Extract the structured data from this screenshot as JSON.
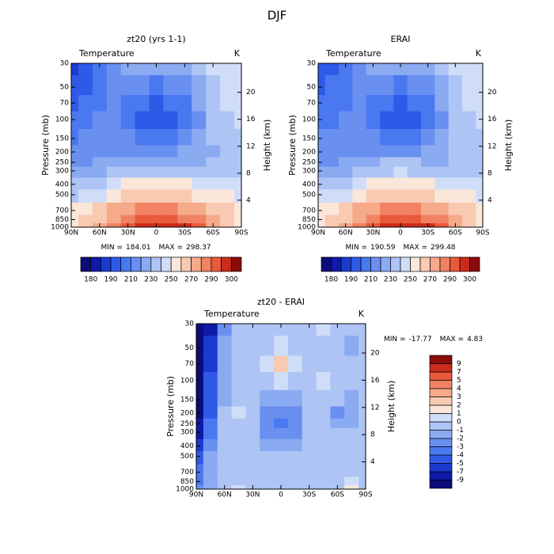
{
  "title": "DJF",
  "chart_data": [
    {
      "type": "contour",
      "title": "zt20 (yrs 1-1)",
      "left_label": "Temperature",
      "right_label": "K",
      "x": [
        90,
        75,
        60,
        45,
        30,
        15,
        0,
        -15,
        -30,
        -45,
        -60,
        -75,
        -90
      ],
      "xlim": [
        90,
        -90
      ],
      "xticks": [
        {
          "value": 90,
          "label": "90N"
        },
        {
          "value": 60,
          "label": "60N"
        },
        {
          "value": 30,
          "label": "30N"
        },
        0,
        {
          "value": -30,
          "label": "30S"
        },
        {
          "value": -60,
          "label": "60S"
        },
        {
          "value": -90,
          "label": "90S"
        }
      ],
      "y": [
        30,
        50,
        70,
        100,
        150,
        200,
        250,
        300,
        400,
        500,
        700,
        850,
        1000
      ],
      "ylim": [
        1000,
        30
      ],
      "yscale": "log",
      "yticks": [
        1000,
        850,
        700,
        500,
        400,
        300,
        250,
        200,
        150,
        100,
        70,
        50,
        30
      ],
      "ylabel": "Pressure (mb)",
      "y2lim": [
        0,
        24.3
      ],
      "y2ticks": [
        4,
        8,
        12,
        16,
        20
      ],
      "y2label": "Height (km)",
      "z": [
        [
          188,
          195,
          205,
          215,
          220,
          222,
          222,
          222,
          225,
          232,
          240,
          245,
          248
        ],
        [
          192,
          198,
          207,
          212,
          212,
          210,
          208,
          210,
          215,
          225,
          235,
          242,
          246
        ],
        [
          198,
          203,
          208,
          210,
          205,
          200,
          198,
          200,
          207,
          220,
          232,
          240,
          244
        ],
        [
          203,
          207,
          212,
          212,
          205,
          196,
          194,
          196,
          205,
          218,
          230,
          238,
          240
        ],
        [
          208,
          210,
          214,
          215,
          210,
          205,
          203,
          205,
          212,
          222,
          230,
          234,
          236
        ],
        [
          212,
          214,
          216,
          217,
          216,
          215,
          214,
          216,
          220,
          225,
          228,
          232,
          233
        ],
        [
          215,
          217,
          220,
          222,
          225,
          227,
          228,
          228,
          226,
          228,
          232,
          232,
          232
        ],
        [
          220,
          222,
          226,
          230,
          235,
          237,
          238,
          237,
          235,
          234,
          235,
          234,
          233
        ],
        [
          230,
          233,
          238,
          244,
          250,
          252,
          253,
          252,
          250,
          247,
          245,
          243,
          240
        ],
        [
          238,
          242,
          248,
          255,
          260,
          263,
          264,
          263,
          260,
          257,
          254,
          250,
          246
        ],
        [
          250,
          255,
          262,
          270,
          276,
          280,
          281,
          280,
          277,
          272,
          266,
          260,
          254
        ],
        [
          255,
          260,
          268,
          278,
          285,
          290,
          291,
          290,
          287,
          282,
          274,
          265,
          258
        ],
        [
          250,
          262,
          275,
          285,
          292,
          297,
          298,
          297,
          295,
          290,
          278,
          265,
          255
        ]
      ],
      "min_label": "MIN =",
      "min": 184.01,
      "max_label": "MAX =",
      "max": 298.37,
      "colorbar": {
        "orientation": "horizontal",
        "levels": [
          180,
          {
            "value": 185,
            "label": null
          },
          190,
          {
            "value": 200,
            "label": null
          },
          210,
          {
            "value": 220,
            "label": null
          },
          230,
          {
            "value": 240,
            "label": null
          },
          250,
          {
            "value": 260,
            "label": null
          },
          270,
          {
            "value": 280,
            "label": null
          },
          290,
          {
            "value": 295,
            "label": null
          },
          300
        ],
        "colors": [
          "#0c0c7a",
          "#0e1aa8",
          "#1a3ad0",
          "#2f5ae8",
          "#4a78f0",
          "#6990f0",
          "#8aaaf2",
          "#adc4f5",
          "#d0ddf8",
          "#fbe6da",
          "#f8cab2",
          "#f5aa8a",
          "#f08262",
          "#e85a3a",
          "#cc2a1a",
          "#8c0c0c"
        ]
      }
    },
    {
      "type": "contour",
      "title": "ERAI",
      "left_label": "Temperature",
      "right_label": "K",
      "x": [
        90,
        75,
        60,
        45,
        30,
        15,
        0,
        -15,
        -30,
        -45,
        -60,
        -75,
        -90
      ],
      "xlim": [
        90,
        -90
      ],
      "xticks": [
        {
          "value": 90,
          "label": "90N"
        },
        {
          "value": 60,
          "label": "60N"
        },
        {
          "value": 30,
          "label": "30N"
        },
        0,
        {
          "value": -30,
          "label": "30S"
        },
        {
          "value": -60,
          "label": "60S"
        },
        {
          "value": -90,
          "label": "90S"
        }
      ],
      "y": [
        30,
        50,
        70,
        100,
        150,
        200,
        250,
        300,
        400,
        500,
        700,
        850,
        1000
      ],
      "ylim": [
        1000,
        30
      ],
      "yscale": "log",
      "yticks": [
        1000,
        850,
        700,
        500,
        400,
        300,
        250,
        200,
        150,
        100,
        70,
        50,
        30
      ],
      "ylabel": "Pressure (mb)",
      "y2lim": [
        0,
        24.3
      ],
      "y2ticks": [
        4,
        8,
        12,
        16,
        20
      ],
      "y2label": "Height (km)",
      "z": [
        [
          193,
          198,
          207,
          216,
          221,
          223,
          223,
          223,
          226,
          233,
          241,
          246,
          249
        ],
        [
          196,
          201,
          208,
          213,
          213,
          211,
          209,
          211,
          216,
          226,
          236,
          243,
          247
        ],
        [
          201,
          205,
          209,
          211,
          205,
          200,
          197,
          200,
          208,
          221,
          233,
          241,
          245
        ],
        [
          205,
          209,
          213,
          213,
          206,
          197,
          194,
          197,
          206,
          219,
          231,
          239,
          241
        ],
        [
          210,
          212,
          215,
          216,
          211,
          206,
          204,
          206,
          213,
          223,
          231,
          235,
          237
        ],
        [
          214,
          216,
          217,
          218,
          217,
          217,
          216,
          218,
          221,
          226,
          230,
          233,
          234
        ],
        [
          217,
          219,
          221,
          223,
          226,
          230,
          231,
          230,
          227,
          229,
          233,
          233,
          233
        ],
        [
          222,
          224,
          227,
          231,
          236,
          239,
          240,
          239,
          236,
          235,
          236,
          235,
          234
        ],
        [
          232,
          235,
          239,
          245,
          251,
          253,
          254,
          253,
          251,
          248,
          246,
          244,
          241
        ],
        [
          240,
          244,
          249,
          256,
          261,
          264,
          265,
          264,
          261,
          258,
          255,
          251,
          247
        ],
        [
          252,
          256,
          263,
          271,
          277,
          281,
          282,
          281,
          278,
          273,
          267,
          261,
          255
        ],
        [
          257,
          262,
          269,
          279,
          286,
          291,
          292,
          291,
          288,
          283,
          275,
          266,
          259
        ],
        [
          252,
          264,
          276,
          286,
          293,
          298,
          299,
          298,
          296,
          291,
          279,
          266,
          256
        ]
      ],
      "min_label": "MIN =",
      "min": 190.59,
      "max_label": "MAX =",
      "max": 299.48,
      "colorbar": {
        "orientation": "horizontal",
        "levels": [
          180,
          {
            "value": 185,
            "label": null
          },
          190,
          {
            "value": 200,
            "label": null
          },
          210,
          {
            "value": 220,
            "label": null
          },
          230,
          {
            "value": 240,
            "label": null
          },
          250,
          {
            "value": 260,
            "label": null
          },
          270,
          {
            "value": 280,
            "label": null
          },
          290,
          {
            "value": 295,
            "label": null
          },
          300
        ],
        "colors": [
          "#0c0c7a",
          "#0e1aa8",
          "#1a3ad0",
          "#2f5ae8",
          "#4a78f0",
          "#6990f0",
          "#8aaaf2",
          "#adc4f5",
          "#d0ddf8",
          "#fbe6da",
          "#f8cab2",
          "#f5aa8a",
          "#f08262",
          "#e85a3a",
          "#cc2a1a",
          "#8c0c0c"
        ]
      }
    },
    {
      "type": "contour",
      "title": "zt20 - ERAI",
      "left_label": "Temperature",
      "right_label": "K",
      "x": [
        90,
        75,
        60,
        45,
        30,
        15,
        0,
        -15,
        -30,
        -45,
        -60,
        -75,
        -90
      ],
      "xlim": [
        90,
        -90
      ],
      "xticks": [
        {
          "value": 90,
          "label": "90N"
        },
        {
          "value": 60,
          "label": "60N"
        },
        {
          "value": 30,
          "label": "30N"
        },
        0,
        {
          "value": -30,
          "label": "30S"
        },
        {
          "value": -60,
          "label": "60S"
        },
        {
          "value": -90,
          "label": "90S"
        }
      ],
      "y": [
        30,
        50,
        70,
        100,
        150,
        200,
        250,
        300,
        400,
        500,
        700,
        850,
        1000
      ],
      "ylim": [
        1000,
        30
      ],
      "yscale": "log",
      "yticks": [
        1000,
        850,
        700,
        500,
        400,
        300,
        250,
        200,
        150,
        100,
        70,
        50,
        30
      ],
      "ylabel": "Pressure (mb)",
      "y2lim": [
        0,
        24.3
      ],
      "y2ticks": [
        4,
        8,
        12,
        16,
        20
      ],
      "y2label": "Height (km)",
      "z": [
        [
          -15,
          -8,
          -3,
          -1,
          -1,
          -0.5,
          -1,
          -0.5,
          -0.5,
          0.5,
          -0.5,
          -1,
          -1
        ],
        [
          -14,
          -7,
          -2,
          -0.5,
          -1,
          -0.5,
          0.5,
          -0.5,
          -1,
          -1,
          -1,
          -1.5,
          -1
        ],
        [
          -13,
          -6,
          -2,
          -0.5,
          -0.5,
          0.5,
          2.5,
          0.5,
          -0.5,
          -0.5,
          -1,
          -1,
          -0.5
        ],
        [
          -12,
          -5,
          -1.5,
          -0.5,
          -1,
          -0.5,
          0.5,
          -0.5,
          -0.5,
          0.5,
          -0.5,
          -1,
          -1
        ],
        [
          -11,
          -5,
          -1.5,
          -0.5,
          -1,
          -1.5,
          -1.5,
          -1.5,
          -1,
          -0.5,
          -1,
          -1.5,
          -1
        ],
        [
          -10,
          -5,
          -1,
          0.5,
          -1,
          -2.5,
          -3,
          -2.5,
          -1,
          -1,
          -3,
          -2,
          -1
        ],
        [
          -9,
          -4,
          -1,
          -0.5,
          -1,
          -3,
          -3.5,
          -3,
          -1,
          -0.5,
          -2,
          -1.5,
          -1
        ],
        [
          -8,
          -4,
          -1,
          -0.5,
          -1,
          -2.5,
          -3,
          -2.5,
          -1,
          -0.5,
          -1,
          -1,
          -1
        ],
        [
          -6,
          -3,
          -1,
          -0.5,
          -1,
          -1.5,
          -1.5,
          -1.5,
          -0.5,
          -0.5,
          -1,
          -0.5,
          -1
        ],
        [
          -5,
          -2,
          -0.5,
          -0.5,
          -0.5,
          -1,
          -1,
          -0.5,
          -0.5,
          -0.5,
          -0.5,
          -0.5,
          -1
        ],
        [
          -4,
          -2,
          -0.5,
          -0.5,
          -0.5,
          -1,
          -0.5,
          -0.5,
          -0.5,
          -1,
          -0.5,
          -0.5,
          -1
        ],
        [
          -4,
          -2,
          -1,
          -0.5,
          -0.5,
          -0.5,
          -0.5,
          -0.5,
          -0.5,
          -0.5,
          -0.5,
          0.5,
          -0.5
        ],
        [
          -3,
          -2,
          -0.5,
          0.5,
          -0.5,
          -0.5,
          -0.5,
          -0.5,
          -0.5,
          -0.5,
          -0.5,
          1.5,
          -0.5
        ]
      ],
      "min_label": "MIN =",
      "min": -17.77,
      "max_label": "MAX =",
      "max": 4.83,
      "colorbar": {
        "orientation": "vertical",
        "levels": [
          -9,
          -7,
          -5,
          -4,
          -3,
          -2,
          -1,
          0,
          1,
          2,
          3,
          4,
          5,
          7,
          9
        ],
        "colors": [
          "#0c0c7a",
          "#0e1aa8",
          "#1a3ad0",
          "#2f5ae8",
          "#4a78f0",
          "#6990f0",
          "#8aaaf2",
          "#adc4f5",
          "#d0ddf8",
          "#fbe6da",
          "#f8cab2",
          "#f5aa8a",
          "#f08262",
          "#e85a3a",
          "#cc2a1a",
          "#8c0c0c"
        ]
      }
    }
  ]
}
